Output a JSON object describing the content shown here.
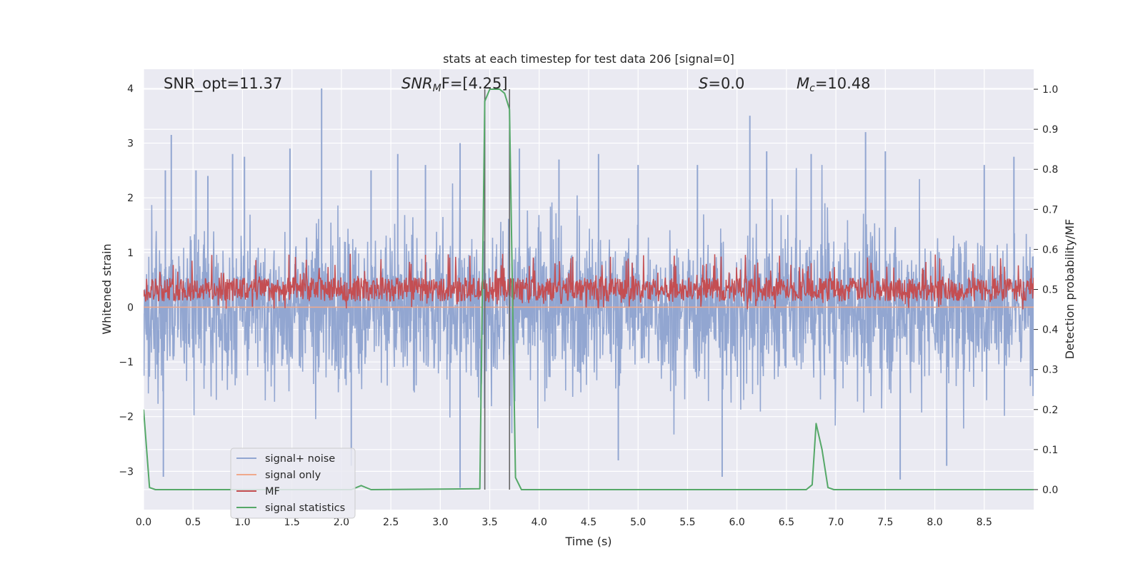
{
  "chart_data": {
    "type": "line",
    "title": "stats at each timestep for test data 206 [signal=0]",
    "xlabel": "Time (s)",
    "ylabel_left": "Whitened strain",
    "ylabel_right": "Detection probability/MF",
    "xlim": [
      0.0,
      9.0
    ],
    "ylim_left": [
      -3.7,
      4.35
    ],
    "ylim_right": [
      -0.05,
      1.05
    ],
    "xticks": [
      "0.0",
      "0.5",
      "1.0",
      "1.5",
      "2.0",
      "2.5",
      "3.0",
      "3.5",
      "4.0",
      "4.5",
      "5.0",
      "5.5",
      "6.0",
      "6.5",
      "7.0",
      "7.5",
      "8.0",
      "8.5"
    ],
    "yticks_left": [
      "−3",
      "−2",
      "−1",
      "0",
      "1",
      "2",
      "3",
      "4"
    ],
    "yticks_right": [
      "0.0",
      "0.1",
      "0.2",
      "0.3",
      "0.4",
      "0.5",
      "0.6",
      "0.7",
      "0.8",
      "0.9",
      "1.0"
    ],
    "grid": true,
    "annotations": {
      "snr_opt": "SNR_opt=11.37",
      "snr_mf_main": "SNR",
      "snr_mf_sub": "M",
      "snr_mf_rest": "F=[4.25]",
      "s_var": "S",
      "s_rest": "=0.0",
      "mc_var": "M",
      "mc_sub": "c",
      "mc_rest": "=10.48"
    },
    "vlines_x": [
      3.45,
      3.7
    ],
    "legend": {
      "position": "lower-left",
      "entries": [
        {
          "label": "signal+ noise",
          "color": "#92a6d1"
        },
        {
          "label": "signal only",
          "color": "#f0a98c"
        },
        {
          "label": "MF",
          "color": "#c44e52"
        },
        {
          "label": "signal statistics",
          "color": "#55a868"
        }
      ]
    },
    "series": [
      {
        "name": "signal+ noise",
        "axis": "left",
        "color": "#92a6d1",
        "description": "whitened noise spanning about -3.3 to 4.0 across 0 to 9 s",
        "approx_range": [
          -3.3,
          4.0
        ],
        "spikes": [
          {
            "x": 0.22,
            "y": 2.5
          },
          {
            "x": 0.28,
            "y": 3.15
          },
          {
            "x": 0.53,
            "y": 2.5
          },
          {
            "x": 0.65,
            "y": 2.4
          },
          {
            "x": 0.9,
            "y": 2.8
          },
          {
            "x": 1.02,
            "y": 2.75
          },
          {
            "x": 1.48,
            "y": 2.9
          },
          {
            "x": 1.8,
            "y": 4.0
          },
          {
            "x": 2.3,
            "y": 2.5
          },
          {
            "x": 2.57,
            "y": 2.8
          },
          {
            "x": 2.85,
            "y": 2.6
          },
          {
            "x": 3.2,
            "y": 3.0
          },
          {
            "x": 3.8,
            "y": 2.9
          },
          {
            "x": 4.2,
            "y": 2.7
          },
          {
            "x": 4.6,
            "y": 2.8
          },
          {
            "x": 5.0,
            "y": 2.6
          },
          {
            "x": 5.6,
            "y": 2.6
          },
          {
            "x": 6.13,
            "y": 3.5
          },
          {
            "x": 6.3,
            "y": 2.85
          },
          {
            "x": 6.75,
            "y": 2.8
          },
          {
            "x": 7.3,
            "y": 3.2
          },
          {
            "x": 7.5,
            "y": 2.85
          },
          {
            "x": 8.5,
            "y": 2.6
          },
          {
            "x": 8.8,
            "y": 2.75
          },
          {
            "x": 0.2,
            "y": -3.1
          },
          {
            "x": 2.1,
            "y": -2.9
          },
          {
            "x": 3.2,
            "y": -3.3
          },
          {
            "x": 4.8,
            "y": -2.8
          },
          {
            "x": 5.85,
            "y": -3.1
          },
          {
            "x": 7.65,
            "y": -3.15
          },
          {
            "x": 8.12,
            "y": -2.9
          }
        ]
      },
      {
        "name": "signal only",
        "axis": "left",
        "color": "#f0a98c",
        "x": [
          0,
          9
        ],
        "y": [
          0.0,
          0.0
        ]
      },
      {
        "name": "MF",
        "axis": "right",
        "color": "#c44e52",
        "description": "matched-filter output fluctuating around 0.5 (about 0.45 to 0.59)",
        "approx_range": [
          0.45,
          0.59
        ]
      },
      {
        "name": "signal statistics",
        "axis": "right",
        "color": "#55a868",
        "x": [
          0.0,
          0.06,
          0.12,
          2.1,
          2.2,
          2.3,
          3.4,
          3.45,
          3.5,
          3.6,
          3.65,
          3.7,
          3.76,
          3.82,
          6.7,
          6.76,
          6.8,
          6.86,
          6.92,
          6.98,
          7.04,
          9.0
        ],
        "y": [
          0.2,
          0.005,
          0.0,
          0.0,
          0.01,
          0.0,
          0.002,
          0.97,
          1.0,
          1.0,
          0.99,
          0.95,
          0.03,
          0.0,
          0.0,
          0.012,
          0.165,
          0.1,
          0.005,
          0.0,
          0.0,
          0.0
        ]
      }
    ]
  }
}
